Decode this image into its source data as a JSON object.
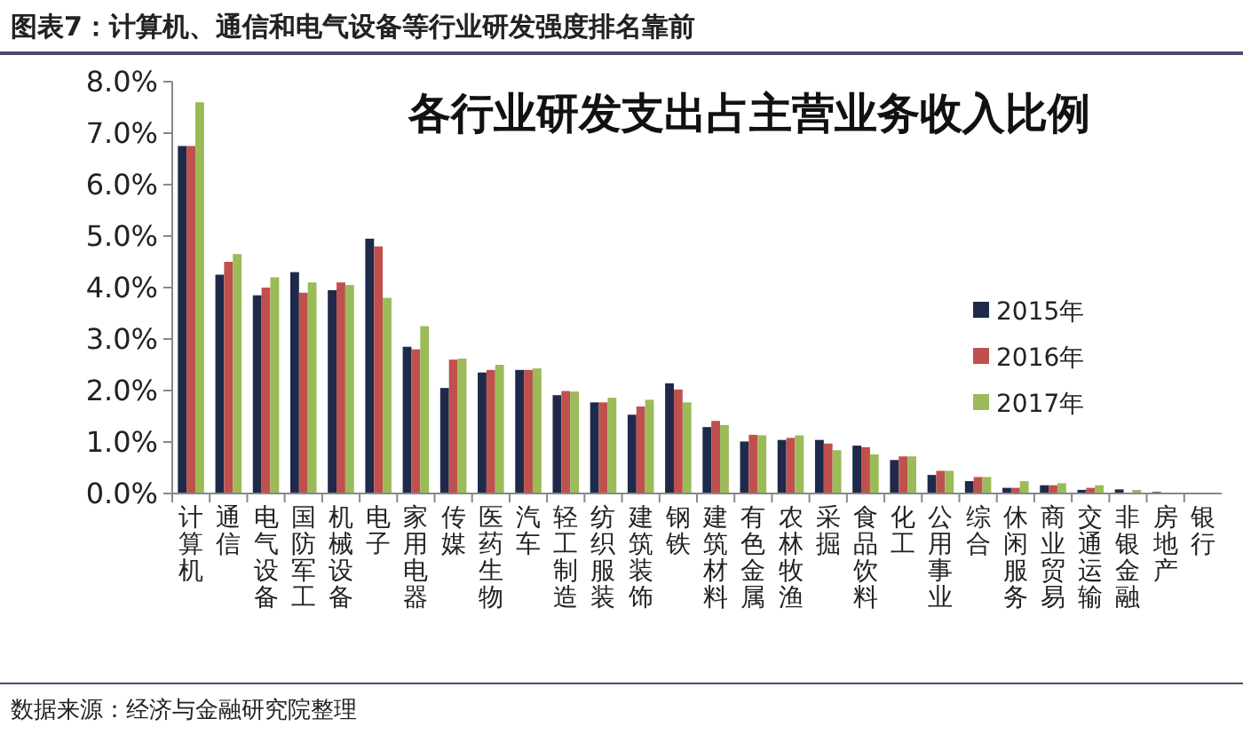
{
  "chart_data": {
    "type": "bar",
    "title": "图表7：计算机、通信和电气设备等行业研发强度排名靠前",
    "subtitle": "各行业研发支出占主营业务收入比例",
    "categories": [
      "计算机",
      "通信",
      "电气设备",
      "国防军工",
      "机械设备",
      "电子",
      "家用电器",
      "传媒",
      "医药生物",
      "汽车",
      "轻工制造",
      "纺织服装",
      "建筑装饰",
      "钢铁",
      "建筑材料",
      "有色金属",
      "农林牧渔",
      "采掘",
      "食品饮料",
      "化工",
      "公用事业",
      "综合",
      "休闲服务",
      "商业贸易",
      "交通运输",
      "非银金融",
      "房地产",
      "银行"
    ],
    "series": [
      {
        "name": "2015年",
        "color": "#1f2a4a",
        "values": [
          6.75,
          4.25,
          3.85,
          4.3,
          3.95,
          4.95,
          2.85,
          2.05,
          2.35,
          2.4,
          1.91,
          1.77,
          1.53,
          2.14,
          1.29,
          1.01,
          1.04,
          1.04,
          0.93,
          0.65,
          0.36,
          0.24,
          0.11,
          0.16,
          0.07,
          0.08,
          0.03,
          0
        ]
      },
      {
        "name": "2016年",
        "color": "#c0504d",
        "values": [
          6.75,
          4.5,
          4.0,
          3.9,
          4.1,
          4.8,
          2.8,
          2.6,
          2.4,
          2.4,
          1.99,
          1.77,
          1.69,
          2.02,
          1.41,
          1.14,
          1.08,
          0.97,
          0.9,
          0.72,
          0.44,
          0.32,
          0.11,
          0.16,
          0.11,
          null,
          null,
          0
        ]
      },
      {
        "name": "2017年",
        "color": "#9bbb59",
        "values": [
          7.6,
          4.65,
          4.2,
          4.1,
          4.05,
          3.8,
          3.25,
          2.62,
          2.5,
          2.43,
          1.98,
          1.86,
          1.82,
          1.77,
          1.33,
          1.13,
          1.13,
          0.84,
          0.76,
          0.72,
          0.44,
          0.32,
          0.24,
          0.2,
          0.16,
          0.07,
          null,
          0
        ]
      }
    ],
    "ylim": [
      0,
      8
    ],
    "yticks": [
      {
        "value": 0,
        "label": "0.0%"
      },
      {
        "value": 1,
        "label": "1.0%"
      },
      {
        "value": 2,
        "label": "2.0%"
      },
      {
        "value": 3,
        "label": "3.0%"
      },
      {
        "value": 4,
        "label": "4.0%"
      },
      {
        "value": 5,
        "label": "5.0%"
      },
      {
        "value": 6,
        "label": "6.0%"
      },
      {
        "value": 7,
        "label": "7.0%"
      },
      {
        "value": 8,
        "label": "8.0%"
      }
    ],
    "grid": false,
    "legend": "right",
    "annotations": [
      "数据来源：经济与金融研究院整理"
    ]
  }
}
